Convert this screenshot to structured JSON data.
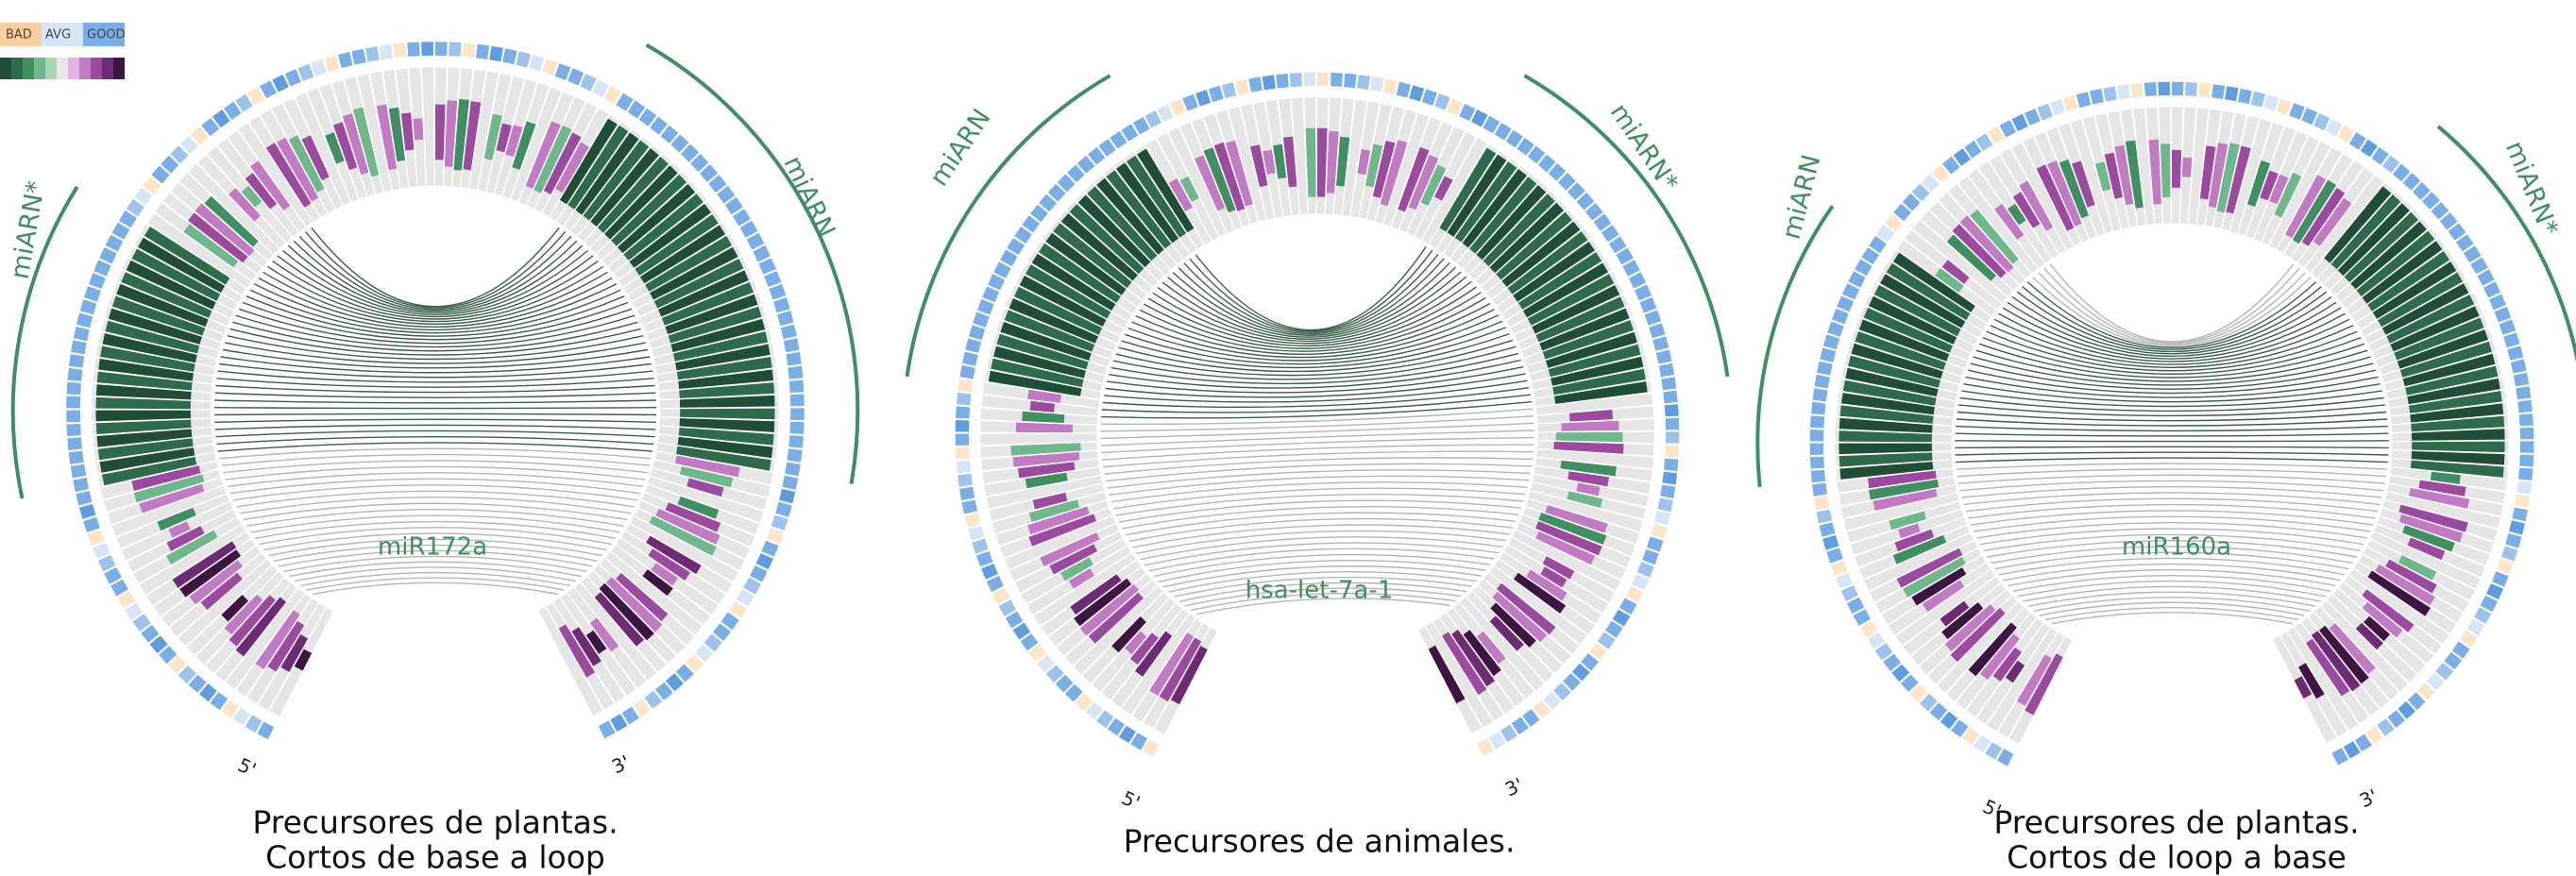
{
  "legend": {
    "labels": [
      "BAD",
      "AVG",
      "GOOD"
    ]
  },
  "panels": [
    {
      "name": "miR172a",
      "title_lines": [
        "Precursores de plantas.",
        "Cortos de base a loop"
      ],
      "arm_labels": [
        "miARN*",
        "miARN"
      ],
      "ends": [
        "5'",
        "3'"
      ]
    },
    {
      "name": "hsa-let-7a-1",
      "title_lines": [
        "Precursores de animales."
      ],
      "arm_labels": [
        "miARN",
        "miARN*"
      ],
      "ends": [
        "5'",
        "3'"
      ]
    },
    {
      "name": "miR160a",
      "title_lines": [
        "Precursores de plantas.",
        "Cortos de loop a base"
      ],
      "arm_labels": [
        "miARN",
        "miARN*"
      ],
      "ends": [
        "5'",
        "3'"
      ]
    }
  ]
}
